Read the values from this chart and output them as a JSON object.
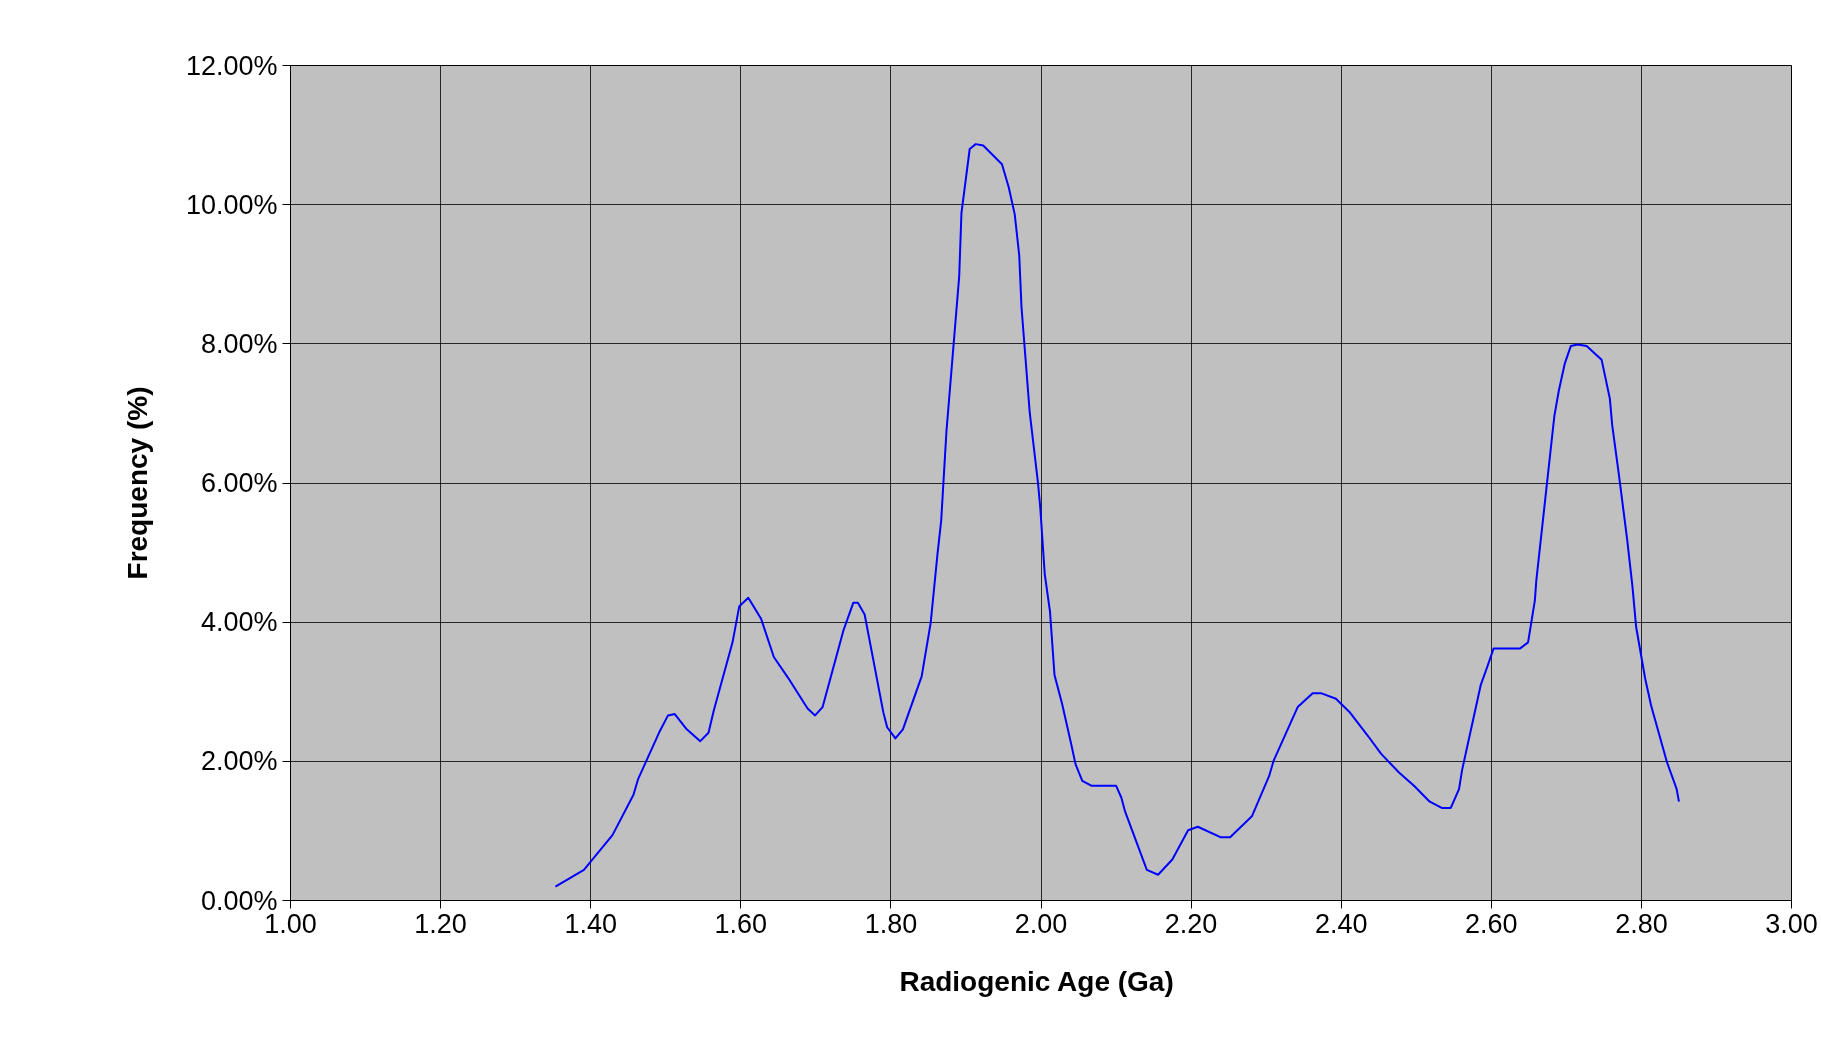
{
  "chart_data": {
    "type": "line",
    "xlabel": "Radiogenic Age  (Ga)",
    "ylabel": "Frequency (%)",
    "xlim": [
      1,
      3
    ],
    "xticks": [
      {
        "value": 1,
        "label": "1.00"
      },
      {
        "value": 1.2,
        "label": "1.20"
      },
      {
        "value": 1.4,
        "label": "1.40"
      },
      {
        "value": 1.6,
        "label": "1.60"
      },
      {
        "value": 1.8,
        "label": "1.80"
      },
      {
        "value": 2,
        "label": "2.00"
      },
      {
        "value": 2.2,
        "label": "2.20"
      },
      {
        "value": 2.4,
        "label": "2.40"
      },
      {
        "value": 2.6,
        "label": "2.60"
      },
      {
        "value": 2.8,
        "label": "2.80"
      },
      {
        "value": 3,
        "label": "3.00"
      }
    ],
    "ylim": [
      0,
      12
    ],
    "yticks": [
      {
        "value": 0,
        "label": "0.00%"
      },
      {
        "value": 2,
        "label": "2.00%"
      },
      {
        "value": 4,
        "label": "4.00%"
      },
      {
        "value": 6,
        "label": "6.00%"
      },
      {
        "value": 8,
        "label": "8.00%"
      },
      {
        "value": 10,
        "label": "10.00%"
      },
      {
        "value": 12,
        "label": "12.00%"
      }
    ],
    "grid": true,
    "marker": "none",
    "line_style": "solid",
    "series": [
      {
        "color": "#0000ff",
        "x": [
          1.353,
          1.391,
          1.4,
          1.429,
          1.457,
          1.463,
          1.491,
          1.503,
          1.512,
          1.528,
          1.546,
          1.557,
          1.564,
          1.589,
          1.598,
          1.61,
          1.627,
          1.644,
          1.663,
          1.689,
          1.699,
          1.709,
          1.737,
          1.75,
          1.756,
          1.765,
          1.79,
          1.795,
          1.806,
          1.816,
          1.841,
          1.853,
          1.862,
          1.867,
          1.874,
          1.891,
          1.894,
          1.905,
          1.913,
          1.923,
          1.948,
          1.957,
          1.965,
          1.971,
          1.974,
          1.985,
          1.996,
          1.999,
          2.005,
          2.012,
          2.018,
          2.028,
          2.04,
          2.046,
          2.055,
          2.067,
          2.1,
          2.107,
          2.112,
          2.141,
          2.156,
          2.175,
          2.196,
          2.209,
          2.239,
          2.252,
          2.281,
          2.304,
          2.31,
          2.342,
          2.362,
          2.373,
          2.393,
          2.411,
          2.436,
          2.453,
          2.477,
          2.497,
          2.518,
          2.534,
          2.546,
          2.557,
          2.561,
          2.586,
          2.595,
          2.603,
          2.606,
          2.638,
          2.649,
          2.658,
          2.66,
          2.684,
          2.69,
          2.698,
          2.706,
          2.715,
          2.727,
          2.747,
          2.758,
          2.761,
          2.77,
          2.781,
          2.788,
          2.793,
          2.805,
          2.813,
          2.834,
          2.847,
          2.85
        ],
        "values": [
          0.2,
          0.44,
          0.56,
          0.94,
          1.52,
          1.74,
          2.41,
          2.66,
          2.68,
          2.46,
          2.29,
          2.41,
          2.73,
          3.71,
          4.23,
          4.35,
          4.05,
          3.5,
          3.2,
          2.76,
          2.66,
          2.78,
          3.89,
          4.28,
          4.28,
          4.11,
          2.7,
          2.49,
          2.33,
          2.46,
          3.22,
          3.99,
          4.97,
          5.46,
          6.74,
          8.97,
          9.88,
          10.8,
          10.87,
          10.85,
          10.58,
          10.25,
          9.86,
          9.27,
          8.53,
          7.01,
          6.0,
          5.65,
          4.69,
          4.15,
          3.24,
          2.83,
          2.26,
          1.96,
          1.72,
          1.65,
          1.65,
          1.48,
          1.28,
          0.44,
          0.37,
          0.59,
          1.01,
          1.06,
          0.91,
          0.91,
          1.21,
          1.79,
          2.01,
          2.78,
          2.98,
          2.98,
          2.9,
          2.71,
          2.36,
          2.11,
          1.84,
          1.65,
          1.42,
          1.33,
          1.33,
          1.6,
          1.87,
          3.1,
          3.37,
          3.62,
          3.62,
          3.62,
          3.71,
          4.31,
          4.6,
          6.96,
          7.33,
          7.72,
          7.97,
          7.99,
          7.97,
          7.77,
          7.21,
          6.84,
          6.12,
          5.19,
          4.52,
          3.93,
          3.19,
          2.8,
          1.99,
          1.6,
          1.42
        ]
      }
    ]
  }
}
